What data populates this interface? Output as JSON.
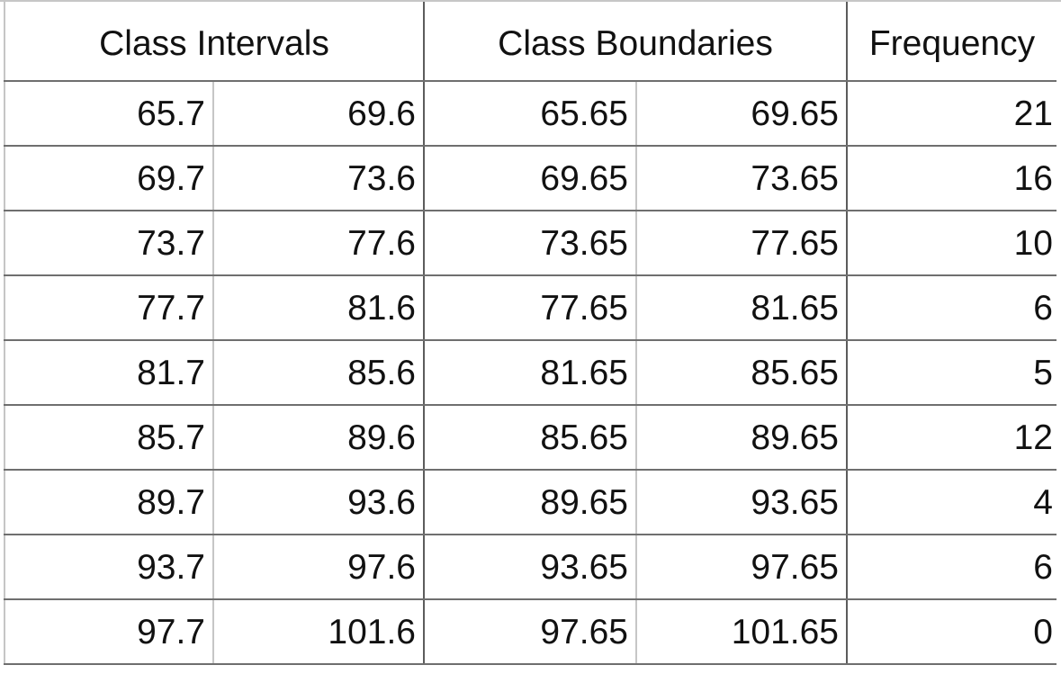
{
  "table": {
    "headers": {
      "class_intervals": "Class Intervals",
      "class_boundaries": "Class Boundaries",
      "frequency": "Frequency"
    },
    "rows": [
      {
        "interval_lower": "65.7",
        "interval_upper": "69.6",
        "boundary_lower": "65.65",
        "boundary_upper": "69.65",
        "frequency": "21"
      },
      {
        "interval_lower": "69.7",
        "interval_upper": "73.6",
        "boundary_lower": "69.65",
        "boundary_upper": "73.65",
        "frequency": "16"
      },
      {
        "interval_lower": "73.7",
        "interval_upper": "77.6",
        "boundary_lower": "73.65",
        "boundary_upper": "77.65",
        "frequency": "10"
      },
      {
        "interval_lower": "77.7",
        "interval_upper": "81.6",
        "boundary_lower": "77.65",
        "boundary_upper": "81.65",
        "frequency": "6"
      },
      {
        "interval_lower": "81.7",
        "interval_upper": "85.6",
        "boundary_lower": "81.65",
        "boundary_upper": "85.65",
        "frequency": "5"
      },
      {
        "interval_lower": "85.7",
        "interval_upper": "89.6",
        "boundary_lower": "85.65",
        "boundary_upper": "89.65",
        "frequency": "12"
      },
      {
        "interval_lower": "89.7",
        "interval_upper": "93.6",
        "boundary_lower": "89.65",
        "boundary_upper": "93.65",
        "frequency": "4"
      },
      {
        "interval_lower": "93.7",
        "interval_upper": "97.6",
        "boundary_lower": "93.65",
        "boundary_upper": "97.65",
        "frequency": "6"
      },
      {
        "interval_lower": "97.7",
        "interval_upper": "101.6",
        "boundary_lower": "97.65",
        "boundary_upper": "101.65",
        "frequency": "0"
      }
    ]
  }
}
